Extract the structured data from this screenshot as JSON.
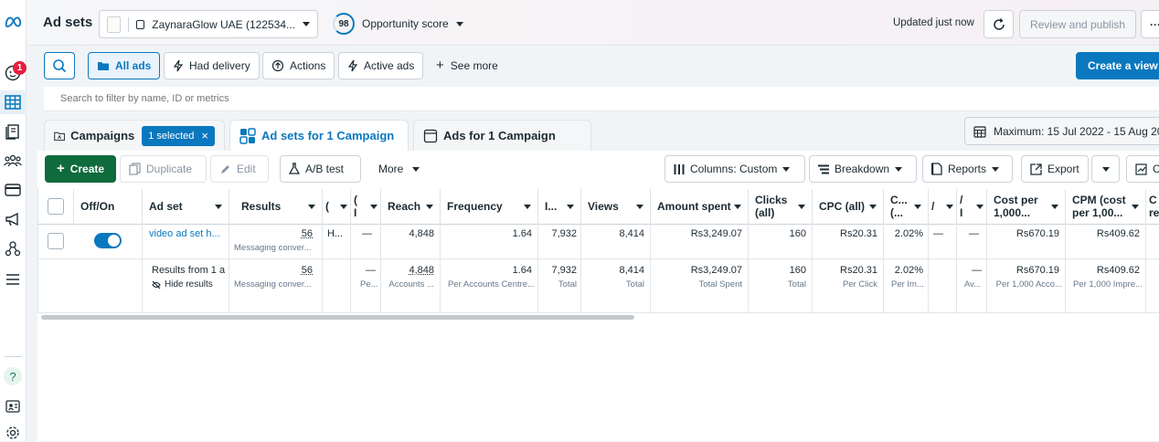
{
  "header": {
    "title": "Ad sets",
    "account_name": "ZaynaraGlow UAE (122534...",
    "opportunity_score": "98",
    "opportunity_label": "Opportunity score",
    "updated_text": "Updated just now",
    "review_publish": "Review and publish",
    "more": "···"
  },
  "sidebar": {
    "notification_count": "1",
    "help": "?"
  },
  "filters": {
    "all_ads": "All ads",
    "had_delivery": "Had delivery",
    "actions": "Actions",
    "active_ads": "Active ads",
    "see_more": "See more",
    "create_view": "Create a view",
    "search_placeholder": "Search to filter by name, ID or metrics"
  },
  "tabs": {
    "campaigns": "Campaigns",
    "selected_badge": "1 selected",
    "adsets": "Ad sets for 1 Campaign",
    "ads": "Ads for 1 Campaign",
    "date_range": "Maximum: 15 Jul 2022 - 15 Aug 20"
  },
  "toolbar": {
    "create": "Create",
    "duplicate": "Duplicate",
    "edit": "Edit",
    "ab_test": "A/B test",
    "more": "More",
    "columns": "Columns: Custom",
    "breakdown": "Breakdown",
    "reports": "Reports",
    "export": "Export",
    "chart": "C"
  },
  "table": {
    "headers": {
      "offon": "Off/On",
      "adset": "Ad set",
      "results": "Results",
      "c1a": "(",
      "c1b": "",
      "c2a": "(",
      "c2b": "I",
      "reach": "Reach",
      "frequency": "Frequency",
      "impr": "I...",
      "views": "Views",
      "amount": "Amount spent",
      "clicks_a": "Clicks",
      "clicks_b": "(all)",
      "cpc": "CPC (all)",
      "ctr_a": "C...",
      "ctr_b": "(...",
      "c3a": "/",
      "c3b": "",
      "c4a": "/",
      "c4b": "I",
      "costper_a": "Cost per",
      "costper_b": "1,000...",
      "cpm_a": "CPM (cost",
      "cpm_b": "per 1,00...",
      "last_a": "C",
      "last_b": "re"
    },
    "row": {
      "adset_name": "video ad set h...",
      "results": "56",
      "results_sub": "Messaging conver...",
      "c1": "H...",
      "c2": "—",
      "reach": "4,848",
      "frequency": "1.64",
      "impressions": "7,932",
      "views": "8,414",
      "amount": "Rs3,249.07",
      "clicks": "160",
      "cpc": "Rs20.31",
      "ctr": "2.02%",
      "c3": "—",
      "c4": "—",
      "costper": "Rs670.19",
      "cpm": "Rs409.62"
    },
    "total": {
      "label": "Results from 1 a",
      "hide": "Hide results",
      "results": "56",
      "results_sub": "Messaging conver...",
      "c2": "—",
      "c2_sub": "Pe...",
      "reach": "4,848",
      "reach_sub": "Accounts ...",
      "frequency": "1.64",
      "frequency_sub": "Per Accounts Centre...",
      "impressions": "7,932",
      "impressions_sub": "Total",
      "views": "8,414",
      "views_sub": "Total",
      "amount": "Rs3,249.07",
      "amount_sub": "Total Spent",
      "clicks": "160",
      "clicks_sub": "Total",
      "cpc": "Rs20.31",
      "cpc_sub": "Per Click",
      "ctr": "2.02%",
      "ctr_sub": "Per Im...",
      "c4": "—",
      "c4_sub": "Av...",
      "costper": "Rs670.19",
      "costper_sub": "Per 1,000 Acco...",
      "cpm": "Rs409.62",
      "cpm_sub": "Per 1,000 Impre..."
    }
  },
  "colors": {
    "accent": "#0a78be",
    "create_green": "#0f6b3c",
    "badge_red": "#e41e3f"
  }
}
